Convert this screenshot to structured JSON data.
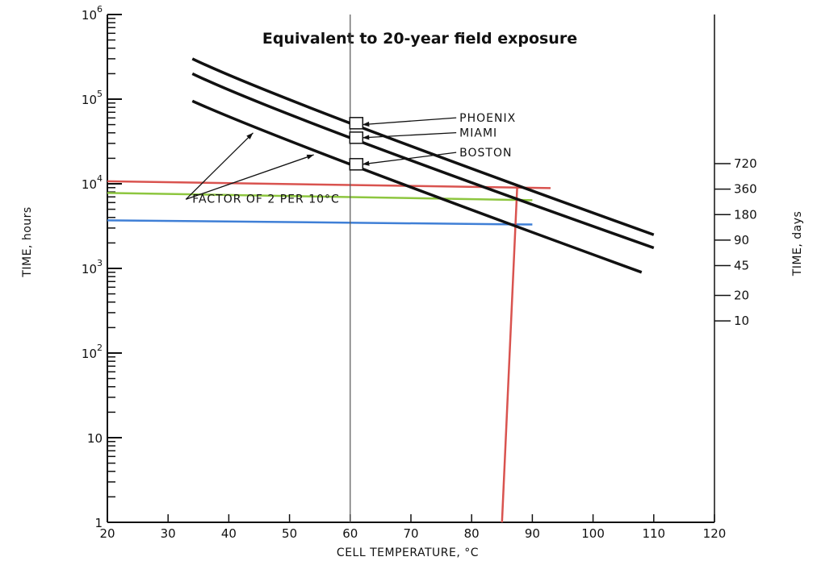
{
  "chart_data": {
    "type": "line",
    "title": "Equivalent to 20-year field exposure",
    "xlabel": "CELL TEMPERATURE, °C",
    "ylabel": "TIME, hours",
    "y2label": "TIME, days",
    "xlim": [
      20,
      120
    ],
    "ylim": [
      1,
      1000000
    ],
    "yscale": "log",
    "grid": false,
    "x_ticks": [
      "20",
      "30",
      "40",
      "50",
      "60",
      "70",
      "80",
      "90",
      "100",
      "110",
      "120"
    ],
    "y_ticks": [
      {
        "value": 1,
        "base": "1",
        "exp": ""
      },
      {
        "value": 10,
        "base": "10",
        "exp": ""
      },
      {
        "value": 100,
        "base": "10",
        "exp": "2"
      },
      {
        "value": 1000,
        "base": "10",
        "exp": "3"
      },
      {
        "value": 10000,
        "base": "10",
        "exp": "4"
      },
      {
        "value": 100000,
        "base": "10",
        "exp": "5"
      },
      {
        "value": 1000000,
        "base": "10",
        "exp": "6"
      }
    ],
    "y2_ticks": [
      {
        "label": "720",
        "hours": 17280
      },
      {
        "label": "360",
        "hours": 8640
      },
      {
        "label": "180",
        "hours": 4320
      },
      {
        "label": "90",
        "hours": 2160
      },
      {
        "label": "45",
        "hours": 1080
      },
      {
        "label": "20",
        "hours": 480
      },
      {
        "label": "10",
        "hours": 240
      }
    ],
    "series": [
      {
        "name": "PHOENIX",
        "color": "#111111",
        "x": [
          34,
          60,
          110
        ],
        "y": [
          300000,
          52000,
          2500
        ]
      },
      {
        "name": "MIAMI",
        "color": "#111111",
        "x": [
          34,
          60,
          110
        ],
        "y": [
          200000,
          35000,
          1750
        ]
      },
      {
        "name": "BOSTON",
        "color": "#111111",
        "x": [
          34,
          60,
          108
        ],
        "y": [
          95000,
          17000,
          900
        ]
      }
    ],
    "markers": [
      {
        "series": "PHOENIX",
        "x": 61,
        "y": 52000
      },
      {
        "series": "MIAMI",
        "x": 61,
        "y": 35000
      },
      {
        "series": "BOSTON",
        "x": 61,
        "y": 17000
      }
    ],
    "reference_lines": [
      {
        "color": "#d9534f",
        "x": [
          20,
          93
        ],
        "y": [
          10700,
          8900
        ]
      },
      {
        "color": "#8dc63f",
        "x": [
          20,
          90
        ],
        "y": [
          7800,
          6400
        ]
      },
      {
        "color": "#3f7fd6",
        "x": [
          20,
          90
        ],
        "y": [
          3700,
          3300
        ]
      },
      {
        "color": "#d9534f",
        "x": [
          87.5,
          85
        ],
        "y": [
          9000,
          1
        ]
      },
      {
        "color": "#555555",
        "x": [
          60,
          60
        ],
        "y": [
          1000000,
          1
        ]
      }
    ],
    "annotations": [
      {
        "text": "PHOENIX",
        "x": 78,
        "y": 54000,
        "arrow_to": {
          "x": 62,
          "y": 50000
        }
      },
      {
        "text": "MIAMI",
        "x": 78,
        "y": 36000,
        "arrow_to": {
          "x": 62,
          "y": 35000
        }
      },
      {
        "text": "BOSTON",
        "x": 78,
        "y": 21000,
        "arrow_to": {
          "x": 62,
          "y": 17000
        }
      },
      {
        "text": "FACTOR OF 2 PER 10°C",
        "x": 34,
        "y": 6000,
        "arrows_to": [
          {
            "x": 44,
            "y": 40000
          },
          {
            "x": 54,
            "y": 22000
          }
        ]
      }
    ]
  }
}
